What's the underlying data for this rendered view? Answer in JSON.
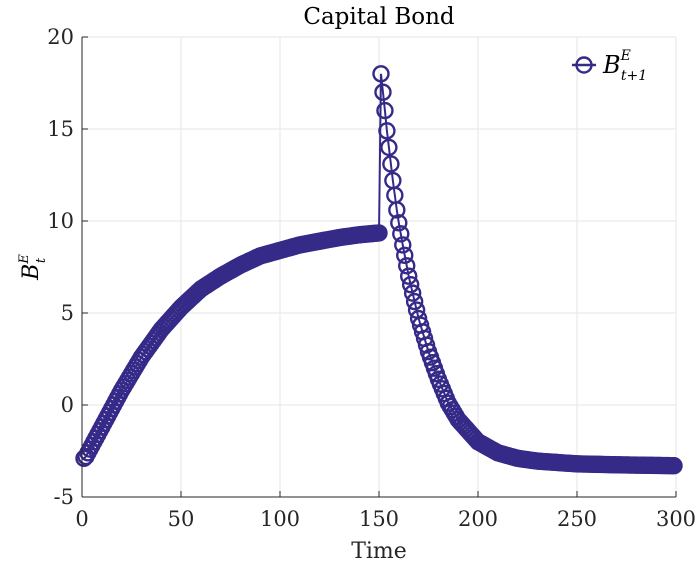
{
  "chart_data": {
    "type": "line",
    "title": "Capital Bond",
    "xlabel": "Time",
    "ylabel": {
      "base": "B",
      "sup": "E",
      "sub": "t"
    },
    "xlim": [
      0,
      300
    ],
    "ylim": [
      -5,
      20
    ],
    "xticks": [
      "0",
      "50",
      "100",
      "150",
      "200",
      "250",
      "300"
    ],
    "yticks": [
      "-5",
      "0",
      "5",
      "10",
      "15",
      "20"
    ],
    "grid": true,
    "legend_position": "top-right",
    "colors": {
      "series": "#352a87",
      "grid": "#e6e6e6",
      "axis": "#262626"
    },
    "marker": "circle-open",
    "series": [
      {
        "legend": {
          "base": "B",
          "sup": "E",
          "sub": "t+1"
        },
        "x": [
          1,
          2,
          3,
          5,
          10,
          15,
          20,
          30,
          40,
          50,
          60,
          70,
          80,
          90,
          100,
          110,
          120,
          130,
          140,
          150,
          151,
          152,
          153,
          154,
          155,
          156,
          157,
          158,
          159,
          160,
          162,
          165,
          170,
          175,
          180,
          185,
          190,
          200,
          210,
          220,
          230,
          250,
          270,
          299
        ],
        "y": [
          -2.9,
          -2.8,
          -2.6,
          -2.2,
          -1.2,
          -0.2,
          0.8,
          2.6,
          4.1,
          5.3,
          6.3,
          7.0,
          7.6,
          8.1,
          8.4,
          8.7,
          8.9,
          9.1,
          9.25,
          9.35,
          18.0,
          17.0,
          16.0,
          14.9,
          14.0,
          13.1,
          12.2,
          11.4,
          10.6,
          9.9,
          8.7,
          7.0,
          4.7,
          2.9,
          1.4,
          0.1,
          -0.8,
          -2.0,
          -2.6,
          -2.9,
          -3.05,
          -3.2,
          -3.25,
          -3.3
        ]
      }
    ]
  }
}
